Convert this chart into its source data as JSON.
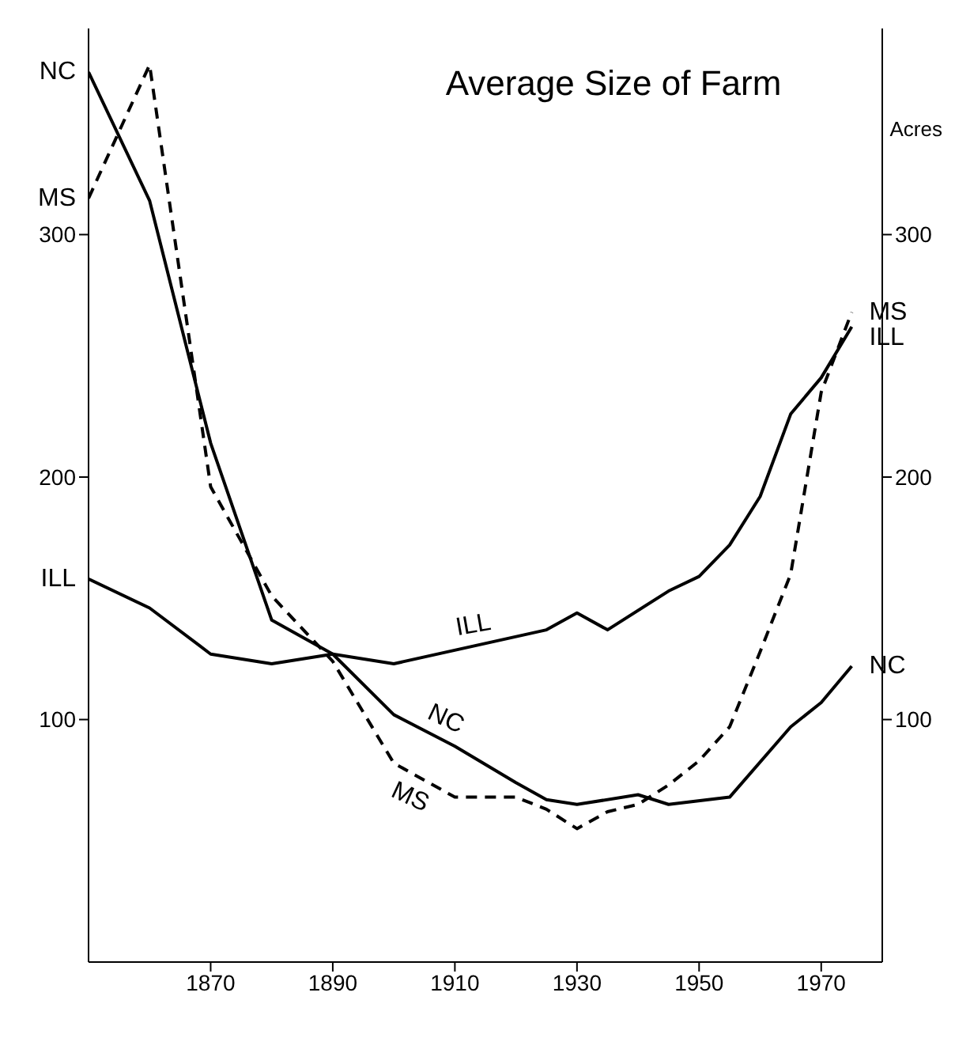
{
  "chart_data": {
    "type": "line",
    "title": "Average Size of Farm",
    "y2label": "Acres",
    "xlim": [
      1850,
      1980
    ],
    "xticks": [
      1870,
      1890,
      1910,
      1930,
      1950,
      1970
    ],
    "ylim": [
      0,
      385
    ],
    "yticks": [
      100,
      200,
      300
    ],
    "y2lim": [
      0,
      385
    ],
    "y2ticks": [
      100,
      200,
      300
    ],
    "grid": false,
    "legend": false,
    "marker": "none",
    "series": [
      {
        "name": "NC",
        "color": "#000000",
        "line_style": "solid",
        "x": [
          1850,
          1860,
          1870,
          1880,
          1890,
          1900,
          1910,
          1920,
          1925,
          1930,
          1940,
          1945,
          1955,
          1965,
          1970,
          1975
        ],
        "values": [
          367,
          314,
          214,
          141,
          127,
          102,
          89,
          74,
          67,
          65,
          69,
          65,
          68,
          97,
          107,
          122
        ]
      },
      {
        "name": "ILL",
        "color": "#000000",
        "line_style": "solid",
        "x": [
          1850,
          1860,
          1870,
          1880,
          1890,
          1900,
          1925,
          1930,
          1935,
          1945,
          1950,
          1955,
          1960,
          1965,
          1970,
          1975
        ],
        "values": [
          158,
          146,
          127,
          123,
          127,
          123,
          137,
          144,
          137,
          153,
          159,
          172,
          192,
          226,
          241,
          262
        ]
      },
      {
        "name": "MS",
        "color": "#000000",
        "line_style": "dashed",
        "x": [
          1850,
          1860,
          1870,
          1880,
          1890,
          1900,
          1910,
          1920,
          1925,
          1930,
          1935,
          1940,
          1945,
          1950,
          1955,
          1960,
          1965,
          1970,
          1975
        ],
        "values": [
          315,
          370,
          196,
          151,
          124,
          82,
          68,
          68,
          63,
          55,
          62,
          65,
          73,
          83,
          97,
          128,
          160,
          235,
          268
        ]
      }
    ]
  }
}
